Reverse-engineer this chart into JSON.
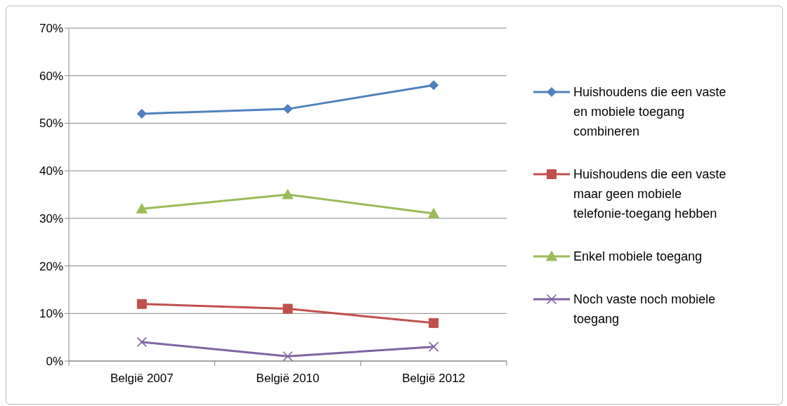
{
  "chart_data": {
    "type": "line",
    "categories": [
      "België 2007",
      "België 2010",
      "België 2012"
    ],
    "series": [
      {
        "name": "Huishoudens die een vaste en mobiele toegang combineren",
        "color": "#4f81bd",
        "marker": "diamond",
        "values": [
          52,
          53,
          58
        ]
      },
      {
        "name": "Huishoudens die een vaste maar geen mobiele telefonie-toegang hebben",
        "color": "#c0504d",
        "marker": "square",
        "values": [
          12,
          11,
          8
        ]
      },
      {
        "name": "Enkel mobiele toegang",
        "color": "#9bbb59",
        "marker": "triangle",
        "values": [
          32,
          35,
          31
        ]
      },
      {
        "name": "Noch vaste noch mobiele toegang",
        "color": "#8064a2",
        "marker": "cross",
        "values": [
          4,
          1,
          3
        ]
      }
    ],
    "ylim": [
      0,
      70
    ],
    "yticks": [
      {
        "value": 0,
        "label": "0%"
      },
      {
        "value": 10,
        "label": "10%"
      },
      {
        "value": 20,
        "label": "20%"
      },
      {
        "value": 30,
        "label": "30%"
      },
      {
        "value": 40,
        "label": "40%"
      },
      {
        "value": 50,
        "label": "50%"
      },
      {
        "value": 60,
        "label": "60%"
      },
      {
        "value": 70,
        "label": "70%"
      }
    ],
    "grid": "y",
    "legend": "right"
  }
}
